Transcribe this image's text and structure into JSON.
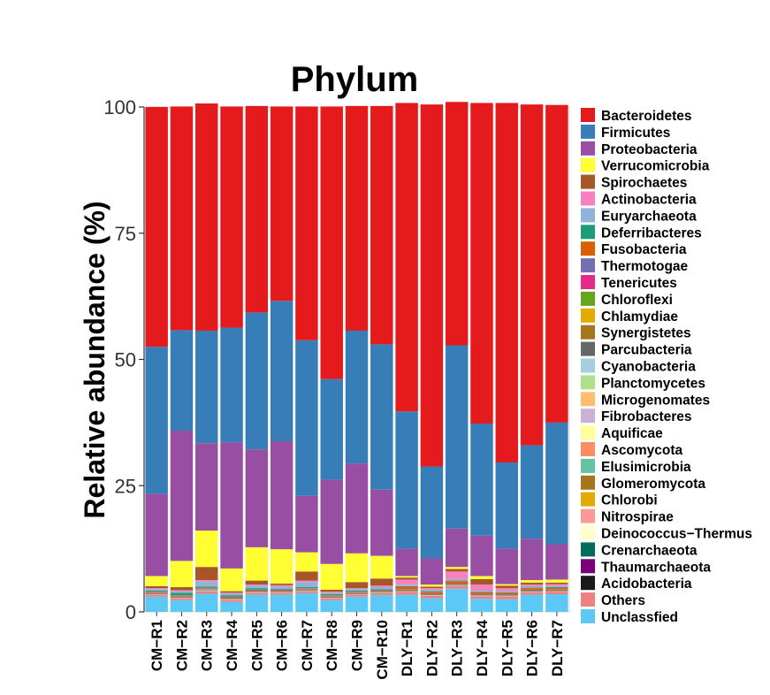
{
  "chart_data": {
    "type": "bar",
    "stacked": true,
    "title": "Phylum",
    "xlabel": "",
    "ylabel": "Relative abundance (%)",
    "ylim": [
      0,
      100
    ],
    "yticks": [
      0,
      25,
      50,
      75,
      100
    ],
    "grid": false,
    "legend_position": "right",
    "categories": [
      "CM−R1",
      "CM−R2",
      "CM−R3",
      "CM−R4",
      "CM−R5",
      "CM−R6",
      "CM−R7",
      "CM−R8",
      "CM−R9",
      "CM−R10",
      "DLY−R1",
      "DLY−R2",
      "DLY−R3",
      "DLY−R4",
      "DLY−R5",
      "DLY−R6",
      "DLY−R7"
    ],
    "stack_order": [
      "Unclassfied",
      "Others",
      "Acidobacteria",
      "Thaumarchaeota",
      "Crenarchaeota",
      "Deinococcus−Thermus",
      "Nitrospirae",
      "Chlorobi",
      "Glomeromycota",
      "Elusimicrobia",
      "Ascomycota",
      "Aquificae",
      "Fibrobacteres",
      "Microgenomates",
      "Planctomycetes",
      "Cyanobacteria",
      "Parcubacteria",
      "Synergistetes",
      "Chlamydiae",
      "Chloroflexi",
      "Tenericutes",
      "Thermotogae",
      "Fusobacteria",
      "Deferribacteres",
      "Euryarchaeota",
      "Actinobacteria",
      "Spirochaetes",
      "Verrucomicrobia",
      "Proteobacteria",
      "Firmicutes",
      "Bacteroidetes"
    ],
    "series": [
      {
        "name": "Bacteroidetes",
        "color": "#e41a1c",
        "values": [
          47.5,
          44.3,
          45.0,
          43.8,
          40.9,
          38.5,
          46.3,
          54.0,
          44.5,
          47.2,
          61.1,
          71.7,
          48.2,
          63.5,
          71.2,
          67.5,
          62.9
        ]
      },
      {
        "name": "Firmicutes",
        "color": "#377eb8",
        "values": [
          29.1,
          19.9,
          22.3,
          22.7,
          27.1,
          27.8,
          30.8,
          19.9,
          26.3,
          28.8,
          27.2,
          18.2,
          36.3,
          22.2,
          17.1,
          18.5,
          24.1
        ]
      },
      {
        "name": "Proteobacteria",
        "color": "#984ea3",
        "values": [
          16.3,
          25.8,
          17.3,
          25.0,
          19.4,
          21.4,
          11.2,
          16.7,
          17.8,
          13.1,
          5.4,
          5.2,
          7.6,
          8.0,
          7.0,
          8.2,
          7.0
        ]
      },
      {
        "name": "Verrucomicrobia",
        "color": "#ffff33",
        "values": [
          2.0,
          5.2,
          7.2,
          4.5,
          6.6,
          6.8,
          3.8,
          5.1,
          5.7,
          4.5,
          0.3,
          0.4,
          0.4,
          0.6,
          0.3,
          0.5,
          0.6
        ]
      },
      {
        "name": "Spirochaetes",
        "color": "#a65628",
        "values": [
          0.4,
          0.6,
          2.6,
          0.3,
          0.8,
          0.3,
          1.8,
          0.4,
          1.2,
          1.4,
          0.4,
          0.3,
          0.5,
          1.1,
          0.5,
          0.4,
          0.3
        ]
      },
      {
        "name": "Actinobacteria",
        "color": "#f781bf",
        "values": [
          0.2,
          0.2,
          0.3,
          0.2,
          0.2,
          0.3,
          0.3,
          0.2,
          0.2,
          0.3,
          1.0,
          0.3,
          1.5,
          1.2,
          0.6,
          0.3,
          0.3
        ]
      },
      {
        "name": "Euryarchaeota",
        "color": "#8fb3d9",
        "values": [
          0.3,
          0.3,
          1.0,
          0.3,
          0.5,
          0.4,
          1.0,
          0.3,
          0.3,
          0.4,
          0.3,
          0.3,
          0.3,
          0.2,
          0.2,
          0.3,
          0.3
        ]
      },
      {
        "name": "Deferribacteres",
        "color": "#1b9e77",
        "values": [
          0.2,
          0.5,
          0.2,
          0.3,
          0.3,
          0.2,
          0.2,
          0.2,
          0.2,
          0.2,
          0.1,
          0.1,
          0.1,
          0.1,
          0.1,
          0.1,
          0.1
        ]
      },
      {
        "name": "Fusobacteria",
        "color": "#d95f02",
        "values": [
          0.1,
          0.1,
          0.1,
          0.1,
          0.1,
          0.1,
          0.1,
          0.1,
          0.1,
          0.1,
          0.5,
          0.3,
          0.5,
          0.3,
          0.3,
          0.3,
          0.3
        ]
      },
      {
        "name": "Thermotogae",
        "color": "#7570b3",
        "values": [
          0.1,
          0.1,
          0.1,
          0.1,
          0.1,
          0.1,
          0.1,
          0.1,
          0.1,
          0.1,
          0.1,
          0.1,
          0.1,
          0.1,
          0.1,
          0.1,
          0.1
        ]
      },
      {
        "name": "Tenericutes",
        "color": "#e7298a",
        "values": [
          0.1,
          0.1,
          0.1,
          0.1,
          0.1,
          0.1,
          0.1,
          0.1,
          0.1,
          0.1,
          0.1,
          0.1,
          0.1,
          0.1,
          0.1,
          0.1,
          0.1
        ]
      },
      {
        "name": "Chloroflexi",
        "color": "#66a61e",
        "values": [
          0.1,
          0.1,
          0.1,
          0.1,
          0.1,
          0.1,
          0.1,
          0.1,
          0.1,
          0.1,
          0.1,
          0.1,
          0.1,
          0.1,
          0.1,
          0.1,
          0.1
        ]
      },
      {
        "name": "Chlamydiae",
        "color": "#e6ab02",
        "values": [
          0,
          0,
          0,
          0,
          0,
          0,
          0,
          0,
          0,
          0,
          0,
          0,
          0,
          0,
          0,
          0,
          0
        ]
      },
      {
        "name": "Synergistetes",
        "color": "#a6761d",
        "values": [
          0.1,
          0.1,
          0.1,
          0.1,
          0.1,
          0.1,
          0.1,
          0.1,
          0.1,
          0.1,
          0.1,
          0.1,
          0.1,
          0.1,
          0.1,
          0.1,
          0.1
        ]
      },
      {
        "name": "Parcubacteria",
        "color": "#666666",
        "values": [
          0,
          0,
          0,
          0,
          0,
          0,
          0,
          0,
          0,
          0,
          0,
          0,
          0,
          0,
          0,
          0,
          0
        ]
      },
      {
        "name": "Cyanobacteria",
        "color": "#a6cee3",
        "values": [
          0.1,
          0.1,
          0.2,
          0.1,
          0.1,
          0.1,
          0.1,
          0.1,
          0.1,
          0.1,
          0.1,
          0.1,
          0.1,
          0.1,
          0.1,
          0.1,
          0.1
        ]
      },
      {
        "name": "Planctomycetes",
        "color": "#b2df8a",
        "values": [
          0,
          0,
          0,
          0,
          0,
          0,
          0,
          0,
          0,
          0,
          0,
          0,
          0,
          0,
          0,
          0,
          0
        ]
      },
      {
        "name": "Microgenomates",
        "color": "#fdbf6f",
        "values": [
          0,
          0,
          0,
          0,
          0,
          0,
          0,
          0,
          0,
          0,
          0,
          0,
          0,
          0,
          0,
          0,
          0
        ]
      },
      {
        "name": "Fibrobacteres",
        "color": "#cab2d6",
        "values": [
          0,
          0,
          0,
          0,
          0,
          0,
          0,
          0,
          0,
          0,
          0,
          0,
          0,
          0,
          0,
          0,
          0
        ]
      },
      {
        "name": "Aquificae",
        "color": "#ffff99",
        "values": [
          0,
          0,
          0,
          0,
          0,
          0,
          0,
          0,
          0,
          0,
          0,
          0,
          0,
          0,
          0,
          0,
          0
        ]
      },
      {
        "name": "Ascomycota",
        "color": "#fc8d62",
        "values": [
          0,
          0,
          0,
          0,
          0,
          0,
          0,
          0,
          0,
          0,
          0,
          0,
          0,
          0,
          0,
          0,
          0
        ]
      },
      {
        "name": "Elusimicrobia",
        "color": "#66c2a5",
        "values": [
          0,
          0,
          0,
          0,
          0,
          0,
          0,
          0,
          0,
          0,
          0,
          0,
          0,
          0,
          0,
          0,
          0
        ]
      },
      {
        "name": "Glomeromycota",
        "color": "#a6761d",
        "values": [
          0,
          0,
          0,
          0,
          0,
          0,
          0,
          0,
          0,
          0,
          0,
          0,
          0,
          0,
          0,
          0,
          0
        ]
      },
      {
        "name": "Chlorobi",
        "color": "#e6ab02",
        "values": [
          0,
          0,
          0,
          0,
          0,
          0,
          0,
          0,
          0,
          0,
          0,
          0,
          0,
          0,
          0,
          0,
          0
        ]
      },
      {
        "name": "Nitrospirae",
        "color": "#fb9a99",
        "values": [
          0,
          0,
          0,
          0,
          0,
          0,
          0,
          0,
          0,
          0,
          0,
          0,
          0,
          0,
          0,
          0,
          0
        ]
      },
      {
        "name": "Deinococcus−Thermus",
        "color": "#ffffcc",
        "values": [
          0,
          0,
          0,
          0,
          0,
          0,
          0,
          0,
          0,
          0,
          0,
          0,
          0,
          0,
          0,
          0,
          0
        ]
      },
      {
        "name": "Crenarchaeota",
        "color": "#016c59",
        "values": [
          0,
          0,
          0,
          0,
          0,
          0,
          0,
          0,
          0,
          0,
          0,
          0,
          0,
          0,
          0,
          0,
          0
        ]
      },
      {
        "name": "Thaumarchaeota",
        "color": "#7a0177",
        "values": [
          0,
          0,
          0,
          0,
          0,
          0,
          0,
          0,
          0,
          0,
          0,
          0,
          0,
          0,
          0,
          0,
          0
        ]
      },
      {
        "name": "Acidobacteria",
        "color": "#1a1a1a",
        "values": [
          0,
          0,
          0,
          0,
          0,
          0,
          0,
          0,
          0,
          0,
          0,
          0,
          0,
          0,
          0,
          0,
          0
        ]
      },
      {
        "name": "Others",
        "color": "#f08080",
        "values": [
          0.4,
          0.4,
          0.5,
          0.4,
          0.4,
          0.4,
          0.4,
          0.4,
          0.4,
          0.4,
          0.6,
          0.5,
          0.5,
          0.5,
          0.5,
          0.5,
          0.5
        ]
      },
      {
        "name": "Unclassfied",
        "color": "#5bc8f5",
        "values": [
          3.0,
          2.3,
          3.6,
          2.0,
          3.4,
          3.4,
          3.7,
          2.3,
          3.0,
          3.3,
          3.4,
          2.7,
          4.6,
          2.6,
          2.5,
          3.4,
          3.5
        ]
      }
    ]
  }
}
